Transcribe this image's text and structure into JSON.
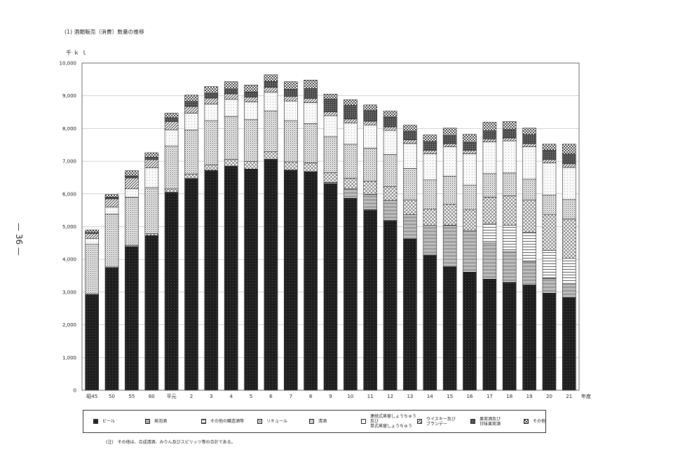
{
  "page": {
    "title": "(1) 酒類販売（消費）数量の推移",
    "page_number": "— 36 —",
    "note": "(注)　その他は、合成清酒、みりん及びスピリッツ等の合計である。"
  },
  "chart_data": {
    "type": "bar",
    "stacked": true,
    "unit_label": "千ｋｌ",
    "ylim": [
      0,
      10000
    ],
    "y_ticks": [
      0,
      1000,
      2000,
      3000,
      4000,
      5000,
      6000,
      7000,
      8000,
      9000,
      10000
    ],
    "y_tick_labels": [
      "0",
      "1,000",
      "2,000",
      "3,000",
      "4,000",
      "5,000",
      "6,000",
      "7,000",
      "8,000",
      "9,000",
      "10,000"
    ],
    "xlabel_suffix": "年度",
    "grid": true,
    "legend_position": "bottom",
    "categories": [
      "昭45",
      "50",
      "55",
      "60",
      "平元",
      "2",
      "3",
      "4",
      "5",
      "6",
      "7",
      "8",
      "9",
      "10",
      "11",
      "12",
      "13",
      "14",
      "15",
      "16",
      "17",
      "18",
      "19",
      "20",
      "21"
    ],
    "series": [
      {
        "name": "ビール",
        "pattern": "solid-black",
        "values": [
          2920,
          3740,
          4390,
          4730,
          6050,
          6470,
          6720,
          6850,
          6760,
          7060,
          6730,
          6670,
          6320,
          5860,
          5510,
          5180,
          4620,
          4130,
          3770,
          3610,
          3400,
          3290,
          3220,
          2970,
          2830
        ]
      },
      {
        "name": "発泡酒",
        "pattern": "hlines-dense",
        "values": [
          0,
          0,
          0,
          0,
          0,
          0,
          0,
          0,
          0,
          0,
          0,
          10,
          30,
          300,
          480,
          620,
          750,
          900,
          1270,
          1270,
          1100,
          950,
          700,
          450,
          400
        ]
      },
      {
        "name": "その他の醸造酒等",
        "pattern": "hlines-sparse",
        "values": [
          0,
          0,
          0,
          0,
          0,
          0,
          0,
          0,
          0,
          0,
          0,
          0,
          0,
          0,
          0,
          0,
          0,
          0,
          0,
          0,
          600,
          800,
          900,
          850,
          800
        ]
      },
      {
        "name": "リキュール",
        "pattern": "diag-cross",
        "values": [
          20,
          30,
          40,
          60,
          100,
          140,
          170,
          200,
          230,
          230,
          250,
          270,
          300,
          320,
          400,
          420,
          450,
          500,
          650,
          640,
          800,
          900,
          1000,
          1100,
          1200
        ]
      },
      {
        "name": "清酒",
        "pattern": "dots",
        "values": [
          1520,
          1620,
          1470,
          1400,
          1320,
          1350,
          1350,
          1320,
          1280,
          1250,
          1260,
          1200,
          1100,
          1040,
          1010,
          990,
          960,
          900,
          850,
          750,
          720,
          700,
          630,
          600,
          600
        ]
      },
      {
        "name": "連続式蒸留しょうちゅう\n及び\n単式蒸留しょうちゅう",
        "pattern": "light-dots",
        "values": [
          180,
          210,
          260,
          610,
          490,
          510,
          510,
          520,
          540,
          570,
          600,
          640,
          640,
          650,
          700,
          730,
          760,
          800,
          900,
          960,
          970,
          980,
          990,
          980,
          980
        ]
      },
      {
        "name": "ウイスキー及び\nブランデー",
        "pattern": "diag-right",
        "values": [
          150,
          250,
          330,
          250,
          250,
          200,
          180,
          170,
          150,
          150,
          140,
          130,
          120,
          120,
          120,
          110,
          110,
          100,
          100,
          100,
          90,
          90,
          100,
          100,
          110
        ]
      },
      {
        "name": "果実酒及び\n甘味果実酒",
        "pattern": "dark-grid",
        "values": [
          30,
          50,
          60,
          70,
          120,
          160,
          150,
          150,
          160,
          180,
          220,
          300,
          390,
          420,
          330,
          300,
          270,
          270,
          250,
          250,
          250,
          260,
          270,
          290,
          300
        ]
      },
      {
        "name": "その他",
        "pattern": "checker",
        "values": [
          80,
          80,
          160,
          140,
          140,
          190,
          200,
          220,
          210,
          200,
          230,
          260,
          150,
          170,
          170,
          180,
          180,
          200,
          220,
          240,
          260,
          240,
          200,
          180,
          300
        ]
      }
    ]
  }
}
